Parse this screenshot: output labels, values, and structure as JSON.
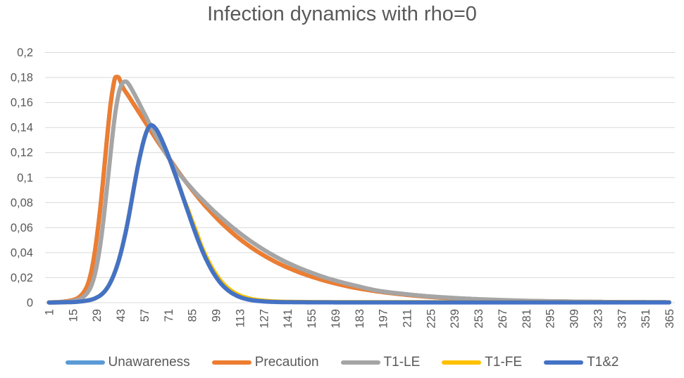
{
  "chart_data": {
    "type": "line",
    "title": "Infection dynamics with rho=0",
    "xlabel": "",
    "ylabel": "",
    "x_axis": {
      "min": 1,
      "max": 365,
      "tick_interval": 14,
      "tick_labels": [
        1,
        15,
        29,
        43,
        57,
        71,
        85,
        99,
        113,
        127,
        141,
        155,
        169,
        183,
        197,
        211,
        225,
        239,
        253,
        267,
        281,
        295,
        309,
        323,
        337,
        351,
        365
      ],
      "label_rotation_deg": -90
    },
    "y_axis": {
      "min": 0,
      "max": 0.2,
      "tick_values": [
        0,
        0.02,
        0.04,
        0.06,
        0.08,
        0.1,
        0.12,
        0.14,
        0.16,
        0.18,
        0.2
      ],
      "tick_labels": [
        "0",
        "0,02",
        "0,04",
        "0,06",
        "0,08",
        "0,1",
        "0,12",
        "0,14",
        "0,16",
        "0,18",
        "0,2"
      ],
      "decimal_separator": ","
    },
    "grid": {
      "horizontal": true,
      "vertical": false,
      "color": "#D9D9D9"
    },
    "legend_position": "bottom",
    "series": [
      {
        "name": "Unawareness",
        "color": "#5B9BD5",
        "note": "curve coincides with Precaution and is hidden beneath it",
        "points": [
          [
            1,
            0.0002
          ],
          [
            8,
            0.0006
          ],
          [
            13,
            0.0015
          ],
          [
            17,
            0.003
          ],
          [
            20,
            0.006
          ],
          [
            23,
            0.012
          ],
          [
            25,
            0.02
          ],
          [
            27,
            0.033
          ],
          [
            29,
            0.051
          ],
          [
            31,
            0.074
          ],
          [
            33,
            0.101
          ],
          [
            35,
            0.13
          ],
          [
            37,
            0.157
          ],
          [
            39,
            0.175
          ],
          [
            40,
            0.1802
          ],
          [
            41,
            0.1805
          ],
          [
            42,
            0.1798
          ],
          [
            44,
            0.173
          ],
          [
            48,
            0.1645
          ],
          [
            52,
            0.156
          ],
          [
            56,
            0.1475
          ],
          [
            60,
            0.139
          ],
          [
            64,
            0.1305
          ],
          [
            68,
            0.1225
          ],
          [
            72,
            0.1145
          ],
          [
            76,
            0.1065
          ],
          [
            80,
            0.099
          ],
          [
            84,
            0.0918
          ],
          [
            88,
            0.085
          ],
          [
            92,
            0.0785
          ],
          [
            96,
            0.0725
          ],
          [
            100,
            0.0668
          ],
          [
            105,
            0.0602
          ],
          [
            110,
            0.0542
          ],
          [
            115,
            0.0488
          ],
          [
            120,
            0.0439
          ],
          [
            125,
            0.0395
          ],
          [
            130,
            0.0355
          ],
          [
            135,
            0.0319
          ],
          [
            140,
            0.0287
          ],
          [
            150,
            0.0232
          ],
          [
            165,
            0.0168
          ],
          [
            180,
            0.0121
          ],
          [
            195,
            0.0088
          ],
          [
            210,
            0.0064
          ],
          [
            225,
            0.0046
          ],
          [
            240,
            0.0034
          ],
          [
            255,
            0.0025
          ],
          [
            270,
            0.0018
          ],
          [
            285,
            0.0013
          ],
          [
            300,
            0.001
          ],
          [
            315,
            0.0007
          ],
          [
            330,
            0.00055
          ],
          [
            345,
            0.0004
          ],
          [
            365,
            0.0003
          ]
        ]
      },
      {
        "name": "Precaution",
        "color": "#ED7D31",
        "peak": {
          "day": 40,
          "value": 0.18
        },
        "points": [
          [
            1,
            0.0002
          ],
          [
            8,
            0.0006
          ],
          [
            13,
            0.0015
          ],
          [
            17,
            0.003
          ],
          [
            20,
            0.006
          ],
          [
            23,
            0.012
          ],
          [
            25,
            0.02
          ],
          [
            27,
            0.033
          ],
          [
            29,
            0.051
          ],
          [
            31,
            0.074
          ],
          [
            33,
            0.101
          ],
          [
            35,
            0.13
          ],
          [
            37,
            0.157
          ],
          [
            39,
            0.175
          ],
          [
            40,
            0.1802
          ],
          [
            41,
            0.1805
          ],
          [
            42,
            0.1798
          ],
          [
            44,
            0.173
          ],
          [
            48,
            0.1645
          ],
          [
            52,
            0.156
          ],
          [
            56,
            0.1475
          ],
          [
            60,
            0.139
          ],
          [
            64,
            0.1305
          ],
          [
            68,
            0.1225
          ],
          [
            72,
            0.1145
          ],
          [
            76,
            0.1065
          ],
          [
            80,
            0.099
          ],
          [
            84,
            0.0918
          ],
          [
            88,
            0.085
          ],
          [
            92,
            0.0785
          ],
          [
            96,
            0.0725
          ],
          [
            100,
            0.0668
          ],
          [
            105,
            0.0602
          ],
          [
            110,
            0.0542
          ],
          [
            115,
            0.0488
          ],
          [
            120,
            0.0439
          ],
          [
            125,
            0.0395
          ],
          [
            130,
            0.0355
          ],
          [
            135,
            0.0319
          ],
          [
            140,
            0.0287
          ],
          [
            150,
            0.0232
          ],
          [
            165,
            0.0168
          ],
          [
            180,
            0.0121
          ],
          [
            195,
            0.0088
          ],
          [
            210,
            0.0064
          ],
          [
            225,
            0.0046
          ],
          [
            240,
            0.0034
          ],
          [
            255,
            0.0025
          ],
          [
            270,
            0.0018
          ],
          [
            285,
            0.0013
          ],
          [
            300,
            0.001
          ],
          [
            315,
            0.0007
          ],
          [
            330,
            0.00055
          ],
          [
            345,
            0.0004
          ],
          [
            365,
            0.0003
          ]
        ]
      },
      {
        "name": "T1-LE",
        "color": "#A5A5A5",
        "peak": {
          "day": 46,
          "value": 0.177
        },
        "points": [
          [
            1,
            0.00015
          ],
          [
            10,
            0.0005
          ],
          [
            15,
            0.0013
          ],
          [
            19,
            0.0028
          ],
          [
            22,
            0.0055
          ],
          [
            25,
            0.011
          ],
          [
            27,
            0.018
          ],
          [
            29,
            0.029
          ],
          [
            31,
            0.045
          ],
          [
            33,
            0.066
          ],
          [
            35,
            0.091
          ],
          [
            37,
            0.117
          ],
          [
            39,
            0.142
          ],
          [
            41,
            0.161
          ],
          [
            43,
            0.1725
          ],
          [
            45,
            0.1765
          ],
          [
            46,
            0.1768
          ],
          [
            47,
            0.176
          ],
          [
            49,
            0.172
          ],
          [
            52,
            0.1645
          ],
          [
            55,
            0.1565
          ],
          [
            58,
            0.1485
          ],
          [
            61,
            0.1405
          ],
          [
            64,
            0.133
          ],
          [
            67,
            0.1255
          ],
          [
            70,
            0.1185
          ],
          [
            73,
            0.1118
          ],
          [
            76,
            0.1055
          ],
          [
            80,
            0.0988
          ],
          [
            84,
            0.0925
          ],
          [
            88,
            0.0865
          ],
          [
            92,
            0.081
          ],
          [
            96,
            0.0755
          ],
          [
            100,
            0.0705
          ],
          [
            105,
            0.0645
          ],
          [
            110,
            0.0588
          ],
          [
            115,
            0.0535
          ],
          [
            120,
            0.0486
          ],
          [
            125,
            0.0441
          ],
          [
            130,
            0.0399
          ],
          [
            135,
            0.0361
          ],
          [
            140,
            0.0326
          ],
          [
            150,
            0.0266
          ],
          [
            165,
            0.0193
          ],
          [
            180,
            0.0139
          ],
          [
            195,
            0.0094
          ],
          [
            210,
            0.0069
          ],
          [
            225,
            0.005
          ],
          [
            240,
            0.0037
          ],
          [
            255,
            0.0027
          ],
          [
            270,
            0.002
          ],
          [
            285,
            0.0014
          ],
          [
            300,
            0.00105
          ],
          [
            315,
            0.00075
          ],
          [
            330,
            0.00055
          ],
          [
            345,
            0.0004
          ],
          [
            365,
            0.0003
          ]
        ]
      },
      {
        "name": "T1-FE",
        "color": "#FFC000",
        "note": "rise and peak hidden beneath T1&2; visible as thin fringe on the descent",
        "points": [
          [
            1,
            0.0001
          ],
          [
            15,
            0.0005
          ],
          [
            21,
            0.0012
          ],
          [
            26,
            0.0025
          ],
          [
            30,
            0.0048
          ],
          [
            33,
            0.008
          ],
          [
            36,
            0.0135
          ],
          [
            39,
            0.022
          ],
          [
            42,
            0.034
          ],
          [
            45,
            0.05
          ],
          [
            48,
            0.07
          ],
          [
            51,
            0.093
          ],
          [
            53,
            0.108
          ],
          [
            55,
            0.1205
          ],
          [
            57,
            0.1315
          ],
          [
            59,
            0.139
          ],
          [
            61,
            0.142
          ],
          [
            64,
            0.1385
          ],
          [
            66,
            0.1335
          ],
          [
            68,
            0.1275
          ],
          [
            70,
            0.121
          ],
          [
            72,
            0.114
          ],
          [
            74,
            0.1065
          ],
          [
            76,
            0.099
          ],
          [
            78,
            0.091
          ],
          [
            80,
            0.083
          ],
          [
            82,
            0.0765
          ],
          [
            84,
            0.069
          ],
          [
            86,
            0.0618
          ],
          [
            88,
            0.0548
          ],
          [
            90,
            0.0468
          ],
          [
            93,
            0.0376
          ],
          [
            96,
            0.0295
          ],
          [
            99,
            0.0228
          ],
          [
            102,
            0.0172
          ],
          [
            105,
            0.0129
          ],
          [
            108,
            0.0096
          ],
          [
            111,
            0.0071
          ],
          [
            114,
            0.0052
          ],
          [
            117,
            0.0039
          ],
          [
            120,
            0.0029
          ],
          [
            124,
            0.002
          ],
          [
            128,
            0.0015
          ],
          [
            133,
            0.001
          ],
          [
            140,
            0.00075
          ],
          [
            150,
            0.00058
          ],
          [
            165,
            0.00048
          ],
          [
            200,
            0.0004
          ],
          [
            260,
            0.00035
          ],
          [
            365,
            0.0003
          ]
        ]
      },
      {
        "name": "T1&2",
        "color": "#4472C4",
        "peak": {
          "day": 61,
          "value": 0.142
        },
        "points": [
          [
            1,
            0.0001
          ],
          [
            15,
            0.0005
          ],
          [
            21,
            0.0012
          ],
          [
            26,
            0.0025
          ],
          [
            30,
            0.0048
          ],
          [
            33,
            0.008
          ],
          [
            36,
            0.0135
          ],
          [
            39,
            0.022
          ],
          [
            42,
            0.034
          ],
          [
            45,
            0.05
          ],
          [
            48,
            0.07
          ],
          [
            51,
            0.093
          ],
          [
            53,
            0.108
          ],
          [
            55,
            0.1205
          ],
          [
            57,
            0.1315
          ],
          [
            59,
            0.139
          ],
          [
            61,
            0.142
          ],
          [
            64,
            0.1385
          ],
          [
            66,
            0.1335
          ],
          [
            68,
            0.1275
          ],
          [
            70,
            0.121
          ],
          [
            72,
            0.114
          ],
          [
            74,
            0.1065
          ],
          [
            76,
            0.099
          ],
          [
            78,
            0.091
          ],
          [
            80,
            0.083
          ],
          [
            82,
            0.075
          ],
          [
            84,
            0.067
          ],
          [
            86,
            0.0593
          ],
          [
            88,
            0.0518
          ],
          [
            90,
            0.0448
          ],
          [
            93,
            0.0354
          ],
          [
            96,
            0.0273
          ],
          [
            99,
            0.0206
          ],
          [
            102,
            0.0152
          ],
          [
            105,
            0.0111
          ],
          [
            108,
            0.008
          ],
          [
            111,
            0.0057
          ],
          [
            114,
            0.004
          ],
          [
            117,
            0.0028
          ],
          [
            120,
            0.002
          ],
          [
            124,
            0.00135
          ],
          [
            128,
            0.00092
          ],
          [
            133,
            0.0006
          ],
          [
            140,
            0.00042
          ],
          [
            150,
            0.00032
          ],
          [
            165,
            0.00026
          ],
          [
            200,
            0.0002
          ],
          [
            260,
            0.0002
          ],
          [
            365,
            0.0002
          ]
        ]
      }
    ]
  },
  "styles": {
    "text_color": "#595959",
    "title_color": "#595959",
    "gridline_color": "#D9D9D9",
    "background": "#FFFFFF",
    "line_width": 6
  }
}
